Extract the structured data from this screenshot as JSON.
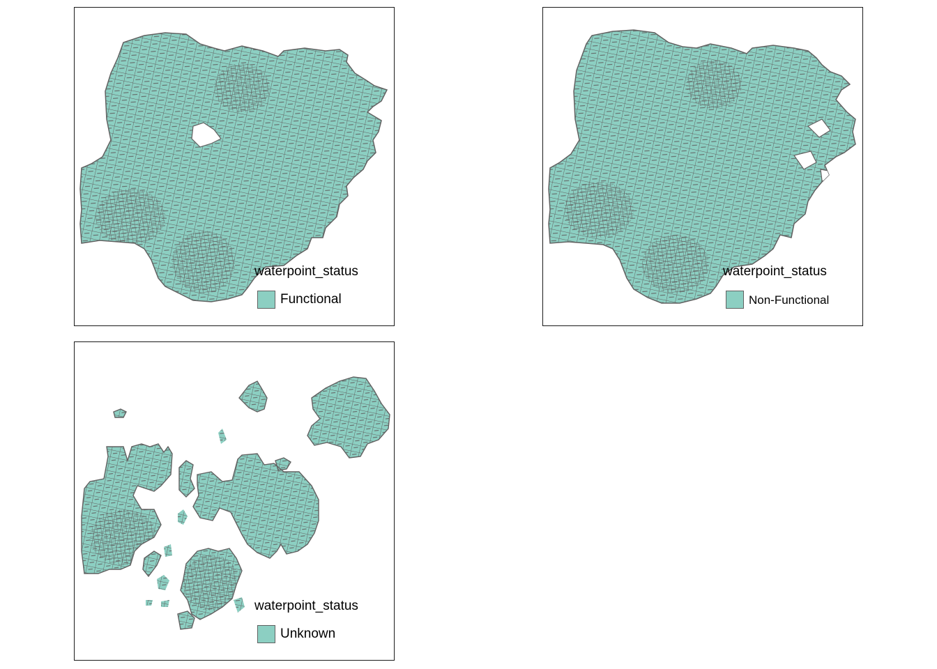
{
  "colors": {
    "fill": "#8ccfc2",
    "stroke": "#616161",
    "frame": "#1a1a1a"
  },
  "panels": [
    {
      "legend_title": "waterpoint_status",
      "category": "Functional"
    },
    {
      "legend_title": "waterpoint_status",
      "category": "Non-Functional"
    },
    {
      "legend_title": "waterpoint_status",
      "category": "Unknown"
    }
  ]
}
